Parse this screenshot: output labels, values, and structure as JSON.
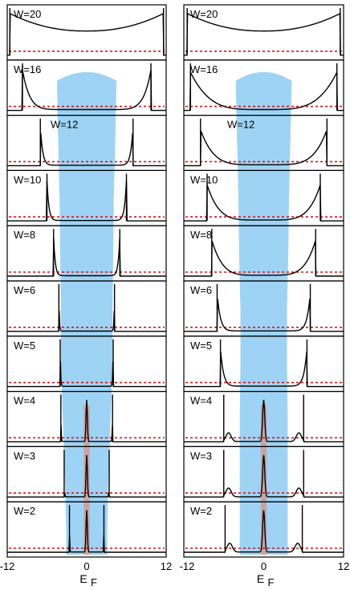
{
  "chart_data": {
    "type": "line",
    "description_columns": [
      "left",
      "right"
    ],
    "xlim": [
      -12,
      12
    ],
    "x_ticks": [
      "-12",
      "0",
      "12"
    ],
    "xlabel_main": "E",
    "xlabel_sub": "F",
    "colors": {
      "curve": "#000000",
      "reference_line": "#dd1111",
      "band": "#9fd3f5",
      "ef_strip": "#c9a3a3",
      "frame": "#000000"
    },
    "panels": [
      {
        "label": "W=20",
        "W": 20
      },
      {
        "label": "W=16",
        "W": 16
      },
      {
        "label": "W=12",
        "W": 12
      },
      {
        "label": "W=10",
        "W": 10
      },
      {
        "label": "W=8",
        "W": 8
      },
      {
        "label": "W=6",
        "W": 6
      },
      {
        "label": "W=5",
        "W": 5
      },
      {
        "label": "W=4",
        "W": 4
      },
      {
        "label": "W=3",
        "W": 3
      },
      {
        "label": "W=2",
        "W": 2
      }
    ],
    "columns": [
      {
        "id": "left",
        "band_halfwidth": {
          "16": 4.5,
          "12": 4.3,
          "10": 4.1,
          "8": 4.0,
          "6": 3.9,
          "5": 3.9,
          "4": 3.6,
          "3": 3.3,
          "2": 3.1
        },
        "edges": {
          "20": 11.6,
          "16": 9.7,
          "12": 7.0,
          "10": 6.0,
          "8": 5.0,
          "6": 4.2,
          "5": 4.0,
          "4": 3.9,
          "3": 3.4,
          "2": 2.6
        }
      },
      {
        "id": "right",
        "band_halfwidth": {
          "16": 4.2,
          "12": 4.0,
          "10": 3.8,
          "8": 3.7,
          "6": 3.5,
          "5": 3.5,
          "4": 3.6,
          "3": 3.6,
          "2": 3.6
        },
        "edges": {
          "20": 11.5,
          "16": 11.0,
          "12": 9.5,
          "10": 8.5,
          "8": 7.8,
          "6": 7.0,
          "5": 6.5,
          "4": 6.0,
          "3": 6.0,
          "2": 5.8
        }
      }
    ],
    "ef_strip_halfwidth": 0.45,
    "ef_strip_panels": [
      "W=4",
      "W=3",
      "W=2"
    ]
  }
}
